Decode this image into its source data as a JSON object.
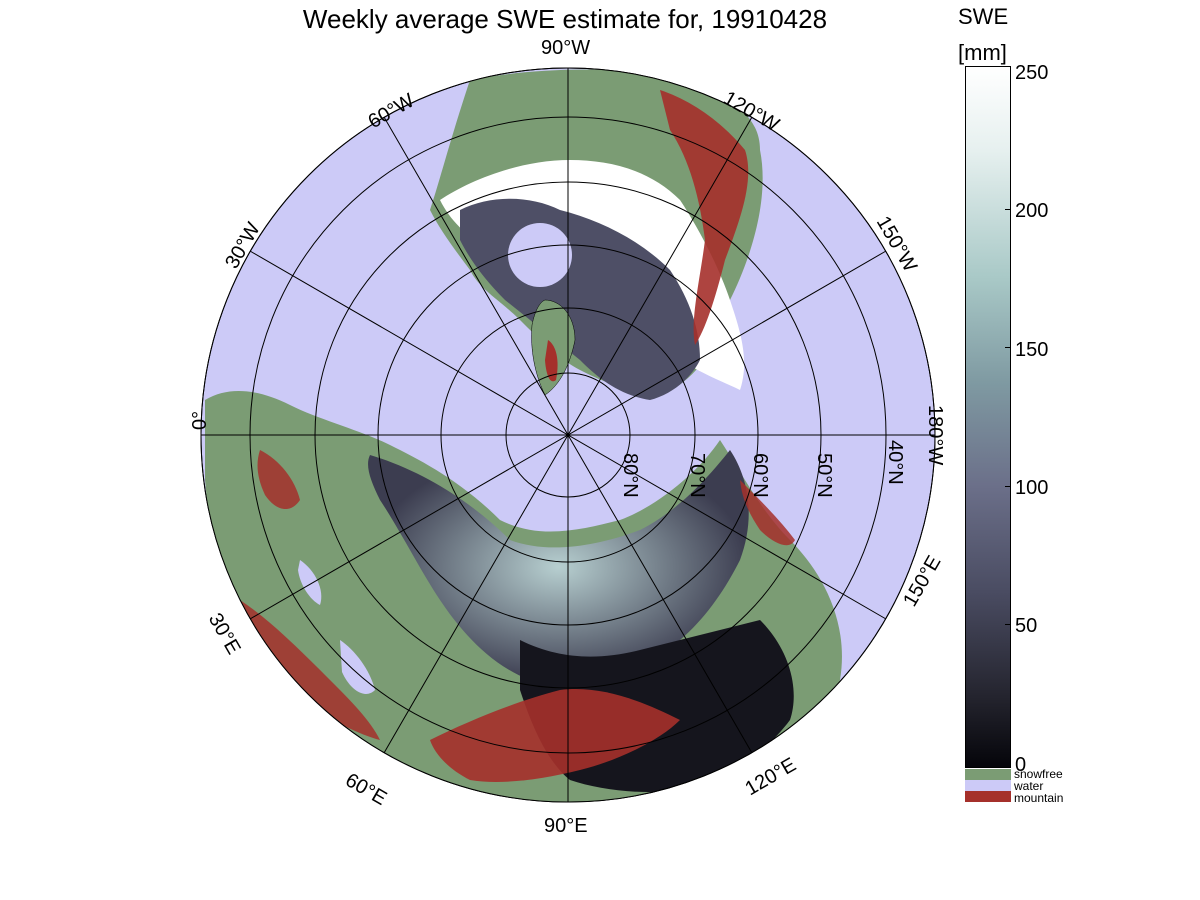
{
  "title": "Weekly average SWE estimate for, 19910428",
  "colorbar": {
    "title_line1": "SWE",
    "title_line2": "[mm]",
    "ticks": [
      "250",
      "200",
      "150",
      "100",
      "50",
      "0"
    ],
    "categories": [
      {
        "label": "snowfree",
        "color": "#7b9c74"
      },
      {
        "label": "water",
        "color": "#cccaf7"
      },
      {
        "label": "mountain",
        "color": "#a5302b"
      }
    ]
  },
  "map": {
    "longitude_labels": [
      "90°W",
      "120°W",
      "150°W",
      "180°W",
      "150°E",
      "120°E",
      "90°E",
      "60°E",
      "30°E",
      "0°",
      "30°W",
      "60°W"
    ],
    "latitude_labels": [
      "80°N",
      "70°N",
      "60°N",
      "50°N",
      "40°N"
    ]
  },
  "colors": {
    "water": "#cccaf7",
    "snowfree": "#7b9c74",
    "mountain": "#a5302b"
  }
}
